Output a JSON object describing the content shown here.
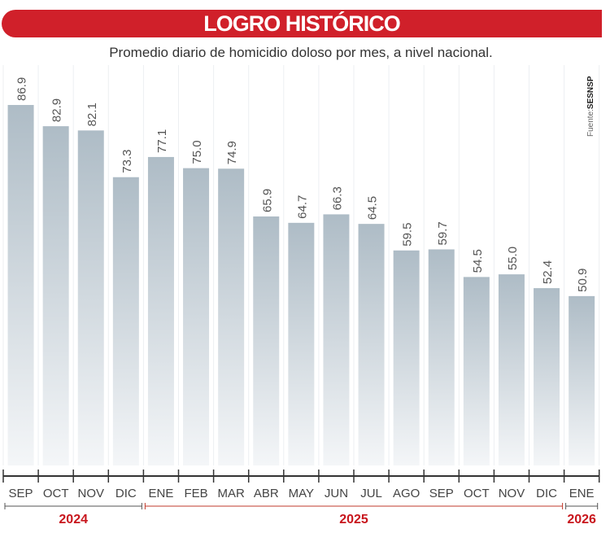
{
  "header": {
    "title": "LOGRO HISTÓRICO"
  },
  "subtitle": "Promedio diario de homicidio doloso por mes, a nivel nacional.",
  "source": {
    "prefix": "Fuente:",
    "name": "SESNSP"
  },
  "colors": {
    "header": "#d0202a",
    "bar_top": "#aebcc6",
    "bar_bottom": "#f4f6f8",
    "year": "#c8161d",
    "year_line_2025": "#c0392b"
  },
  "chart_data": {
    "type": "bar",
    "categories": [
      "SEP",
      "OCT",
      "NOV",
      "DIC",
      "ENE",
      "FEB",
      "MAR",
      "ABR",
      "MAY",
      "JUN",
      "JUL",
      "AGO",
      "SEP",
      "OCT",
      "NOV",
      "DIC",
      "ENE"
    ],
    "values": [
      86.9,
      82.9,
      82.1,
      73.3,
      77.1,
      75.0,
      74.9,
      65.9,
      64.7,
      66.3,
      64.5,
      59.5,
      59.7,
      54.5,
      55.0,
      52.4,
      50.9
    ],
    "labels": [
      "86.9",
      "82.9",
      "82.1",
      "73.3",
      "77.1",
      "75.0",
      "74.9",
      "65.9",
      "64.7",
      "66.3",
      "64.5",
      "59.5",
      "59.7",
      "54.5",
      "55.0",
      "52.4",
      "50.9"
    ],
    "years": [
      {
        "label": "2024",
        "from": 0,
        "to": 3
      },
      {
        "label": "2025",
        "from": 4,
        "to": 15
      },
      {
        "label": "2026",
        "from": 16,
        "to": 16
      }
    ],
    "ylim": [
      19,
      87
    ],
    "grid": true
  }
}
